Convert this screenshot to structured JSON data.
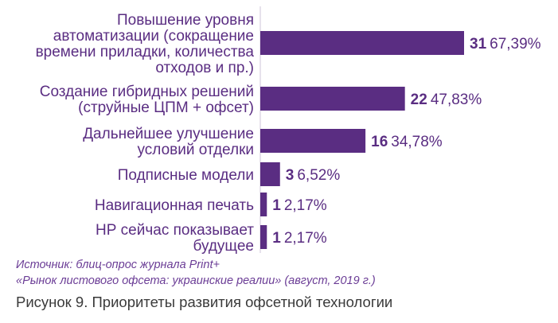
{
  "chart_data": {
    "type": "bar",
    "orientation": "horizontal",
    "categories": [
      [
        "Повышение уровня",
        "автоматизации (сокращение",
        "времени приладки, количества",
        "отходов и пр.)"
      ],
      [
        "Создание гибридных решений",
        "(струйные ЦПМ + офсет)"
      ],
      [
        "Дальнейшее улучшение",
        "условий отделки"
      ],
      [
        "Подписные модели"
      ],
      [
        "Навигационная печать"
      ],
      [
        "НР сейчас показывает",
        "будущее"
      ]
    ],
    "values": [
      31,
      22,
      16,
      3,
      1,
      1
    ],
    "count_labels": [
      "31",
      "22",
      "16",
      "3",
      "1",
      "1"
    ],
    "percent_labels": [
      "67,39%",
      "47,83%",
      "34,78%",
      "6,52%",
      "2,17%",
      "2,17%"
    ],
    "xlim": [
      0,
      31
    ],
    "grid": false,
    "legend": "none",
    "bar_color": "#5a2d82",
    "text_color": "#5a2d82"
  },
  "source": {
    "line1": "Источник: блиц-опрос журнала Print+",
    "line2": "«Рынок листового офсета: украинские реалии» (август, 2019 г.)"
  },
  "caption": "Рисунок 9. Приоритеты развития офсетной технологии"
}
